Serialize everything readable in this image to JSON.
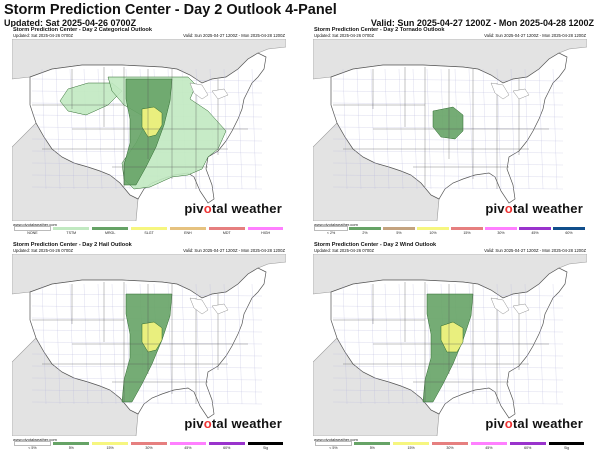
{
  "header": {
    "title": "Storm Prediction Center - Day 2 Outlook 4-Panel",
    "updated": "Updated: Sat 2025-04-26 0700Z",
    "valid": "Valid: Sun 2025-04-27 1200Z - Mon 2025-04-28 1200Z"
  },
  "brand": {
    "pre": "piv",
    "o": "o",
    "post": "tal weather",
    "source": "www.pivotalweather.com"
  },
  "panels": [
    {
      "title": "Storm Prediction Center - Day 2 Categorical Outlook",
      "updated": "Updated: Sat 2025-04-26 0700Z",
      "valid": "Valid: Sun 2025-04-27 1200Z - Mon 2025-04-28 1200Z",
      "legend": [
        {
          "label": "NONE",
          "color": "#ffffff"
        },
        {
          "label": "TSTM",
          "color": "#c1e9c1"
        },
        {
          "label": "MRGL",
          "color": "#66a366"
        },
        {
          "label": "SLGT",
          "color": "#f6f67f"
        },
        {
          "label": "ENH",
          "color": "#e6c27f"
        },
        {
          "label": "MDT",
          "color": "#e67f7f"
        },
        {
          "label": "HIGH",
          "color": "#ff7fff"
        }
      ]
    },
    {
      "title": "Storm Prediction Center - Day 2 Tornado Outlook",
      "updated": "Updated: Sat 2025-04-26 0700Z",
      "valid": "Valid: Sun 2025-04-27 1200Z - Mon 2025-04-28 1200Z",
      "legend": [
        {
          "label": "< 2%",
          "color": "#ffffff"
        },
        {
          "label": "2%",
          "color": "#66a366"
        },
        {
          "label": "5%",
          "color": "#c4a37f"
        },
        {
          "label": "10%",
          "color": "#f6f67f"
        },
        {
          "label": "15%",
          "color": "#e67f7f"
        },
        {
          "label": "30%",
          "color": "#ff7fff"
        },
        {
          "label": "45%",
          "color": "#9933cc"
        },
        {
          "label": "60%",
          "color": "#104e8b"
        }
      ]
    },
    {
      "title": "Storm Prediction Center - Day 2 Hail Outlook",
      "updated": "Updated: Sat 2025-04-26 0700Z",
      "valid": "Valid: Sun 2025-04-27 1200Z - Mon 2025-04-28 1200Z",
      "legend": [
        {
          "label": "< 5%",
          "color": "#ffffff"
        },
        {
          "label": "5%",
          "color": "#66a366"
        },
        {
          "label": "15%",
          "color": "#f6f67f"
        },
        {
          "label": "30%",
          "color": "#e67f7f"
        },
        {
          "label": "45%",
          "color": "#ff7fff"
        },
        {
          "label": "60%",
          "color": "#9933cc"
        },
        {
          "label": "Sig",
          "color": "#000000"
        }
      ]
    },
    {
      "title": "Storm Prediction Center - Day 2 Wind Outlook",
      "updated": "Updated: Sat 2025-04-26 0700Z",
      "valid": "Valid: Sun 2025-04-27 1200Z - Mon 2025-04-28 1200Z",
      "legend": [
        {
          "label": "< 5%",
          "color": "#ffffff"
        },
        {
          "label": "5%",
          "color": "#66a366"
        },
        {
          "label": "15%",
          "color": "#f6f67f"
        },
        {
          "label": "30%",
          "color": "#e67f7f"
        },
        {
          "label": "45%",
          "color": "#ff7fff"
        },
        {
          "label": "60%",
          "color": "#9933cc"
        },
        {
          "label": "Sig",
          "color": "#000000"
        }
      ]
    }
  ]
}
